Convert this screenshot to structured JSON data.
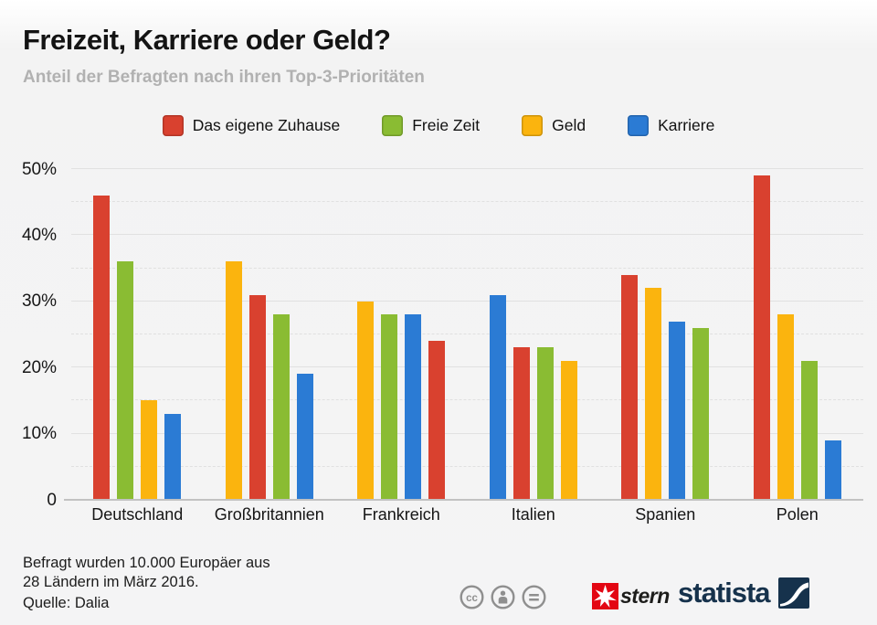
{
  "header": {
    "title": "Freizeit, Karriere oder Geld?",
    "subtitle": "Anteil der Befragten nach ihren Top-3-Prioritäten"
  },
  "chart_data": {
    "type": "bar",
    "title": "Freizeit, Karriere oder Geld?",
    "subtitle": "Anteil der Befragten nach ihren Top-3-Prioritäten",
    "unit": "%",
    "ylim": [
      0,
      50
    ],
    "yticks": [
      0,
      10,
      20,
      30,
      40,
      50
    ],
    "grid": true,
    "legend_position": "top",
    "categories": [
      "Deutschland",
      "Großbritannien",
      "Frankreich",
      "Italien",
      "Spanien",
      "Polen"
    ],
    "series": [
      {
        "name": "Das eigene Zuhause",
        "color": "#d9412f",
        "values": [
          46,
          31,
          24,
          23,
          34,
          49
        ]
      },
      {
        "name": "Freie Zeit",
        "color": "#8abc33",
        "values": [
          36,
          28,
          28,
          23,
          26,
          21
        ]
      },
      {
        "name": "Geld",
        "color": "#fbb40e",
        "values": [
          15,
          36,
          30,
          21,
          32,
          28
        ]
      },
      {
        "name": "Karriere",
        "color": "#2b7bd4",
        "values": [
          13,
          19,
          28,
          31,
          27,
          9
        ]
      }
    ],
    "groups": [
      {
        "label": "Deutschland",
        "bars": [
          {
            "series": "Das eigene Zuhause",
            "value": 46
          },
          {
            "series": "Freie Zeit",
            "value": 36
          },
          {
            "series": "Geld",
            "value": 15
          },
          {
            "series": "Karriere",
            "value": 13
          }
        ]
      },
      {
        "label": "Großbritannien",
        "bars": [
          {
            "series": "Geld",
            "value": 36
          },
          {
            "series": "Das eigene Zuhause",
            "value": 31
          },
          {
            "series": "Freie Zeit",
            "value": 28
          },
          {
            "series": "Karriere",
            "value": 19
          }
        ]
      },
      {
        "label": "Frankreich",
        "bars": [
          {
            "series": "Geld",
            "value": 30
          },
          {
            "series": "Freie Zeit",
            "value": 28
          },
          {
            "series": "Karriere",
            "value": 28
          },
          {
            "series": "Das eigene Zuhause",
            "value": 24
          }
        ]
      },
      {
        "label": "Italien",
        "bars": [
          {
            "series": "Karriere",
            "value": 31
          },
          {
            "series": "Das eigene Zuhause",
            "value": 23
          },
          {
            "series": "Freie Zeit",
            "value": 23
          },
          {
            "series": "Geld",
            "value": 21
          }
        ]
      },
      {
        "label": "Spanien",
        "bars": [
          {
            "series": "Das eigene Zuhause",
            "value": 34
          },
          {
            "series": "Geld",
            "value": 32
          },
          {
            "series": "Karriere",
            "value": 27
          },
          {
            "series": "Freie Zeit",
            "value": 26
          }
        ]
      },
      {
        "label": "Polen",
        "bars": [
          {
            "series": "Das eigene Zuhause",
            "value": 49
          },
          {
            "series": "Geld",
            "value": 28
          },
          {
            "series": "Freie Zeit",
            "value": 21
          },
          {
            "series": "Karriere",
            "value": 9
          }
        ]
      }
    ]
  },
  "footer": {
    "note_line1": "Befragt wurden 10.000 Europäer aus",
    "note_line2": "28 Ländern im März 2016.",
    "source": "Quelle: Dalia",
    "cc_icons": [
      "cc",
      "by",
      "nd"
    ],
    "brands": {
      "stern": "stern",
      "statista": "statista"
    }
  }
}
